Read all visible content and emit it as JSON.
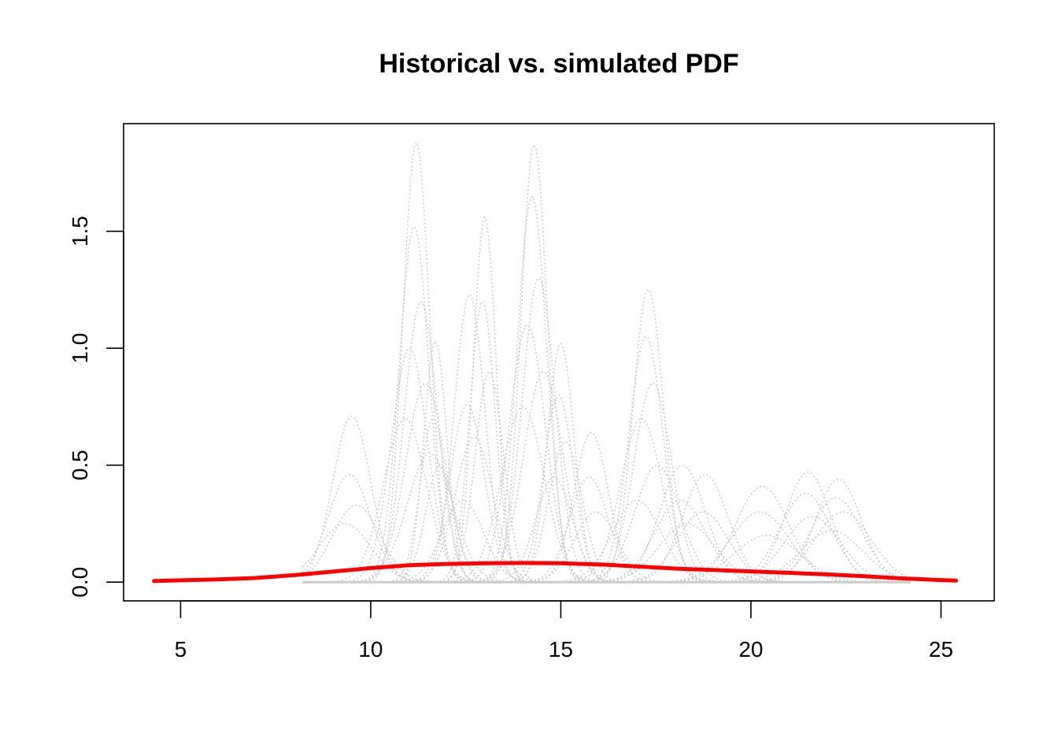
{
  "chart_data": {
    "type": "line",
    "title": "Historical vs. simulated PDF",
    "xlabel": "",
    "ylabel": "",
    "xlim": [
      3.5,
      26.4
    ],
    "ylim": [
      -0.08,
      1.96
    ],
    "x_ticks": [
      5,
      10,
      15,
      20,
      25
    ],
    "x_tick_labels": [
      "5",
      "10",
      "15",
      "20",
      "25"
    ],
    "y_ticks": [
      0.0,
      0.5,
      1.0,
      1.5
    ],
    "y_tick_labels": [
      "0.0",
      "0.5",
      "1.0",
      "1.5"
    ],
    "grid": false,
    "legend": "none",
    "colors": {
      "historical": "#ff0000",
      "simulated": "#cccccc",
      "axes": "#000000",
      "background": "#ffffff"
    },
    "simulated_peaks": [
      {
        "x": 9.5,
        "heights": [
          0.71,
          0.46,
          0.33,
          0.25
        ],
        "width": 0.5
      },
      {
        "x": 11.2,
        "heights": [
          1.88,
          1.52,
          1.2,
          1.0,
          0.85,
          0.7,
          0.55
        ],
        "width": 0.35
      },
      {
        "x": 11.7,
        "heights": [
          1.03,
          0.7,
          0.5
        ],
        "width": 0.3
      },
      {
        "x": 12.6,
        "heights": [
          1.23,
          0.76,
          0.62,
          0.35
        ],
        "width": 0.4
      },
      {
        "x": 13.0,
        "heights": [
          1.56,
          1.2,
          0.9
        ],
        "width": 0.3
      },
      {
        "x": 14.3,
        "heights": [
          1.87,
          1.65,
          1.3,
          1.1,
          0.9,
          0.75
        ],
        "width": 0.35
      },
      {
        "x": 15.0,
        "heights": [
          1.02,
          0.8,
          0.6,
          0.45
        ],
        "width": 0.35
      },
      {
        "x": 15.8,
        "heights": [
          0.64,
          0.45,
          0.3
        ],
        "width": 0.45
      },
      {
        "x": 17.3,
        "heights": [
          1.25,
          1.05,
          0.85,
          0.7,
          0.5,
          0.35
        ],
        "width": 0.4
      },
      {
        "x": 18.2,
        "heights": [
          0.5,
          0.35,
          0.25
        ],
        "width": 0.6
      },
      {
        "x": 18.8,
        "heights": [
          0.46,
          0.3
        ],
        "width": 0.6
      },
      {
        "x": 20.3,
        "heights": [
          0.41,
          0.3,
          0.2
        ],
        "width": 0.7
      },
      {
        "x": 21.5,
        "heights": [
          0.47,
          0.38,
          0.28
        ],
        "width": 0.6
      },
      {
        "x": 22.3,
        "heights": [
          0.44,
          0.36,
          0.3,
          0.22
        ],
        "width": 0.6
      }
    ],
    "series": [
      {
        "x": [
          4.3,
          5,
          6,
          7,
          8,
          9,
          10,
          11,
          12,
          13,
          14,
          15,
          16,
          17,
          18,
          19,
          20,
          21,
          22,
          23,
          24,
          25,
          25.4
        ],
        "values": [
          0.005,
          0.008,
          0.012,
          0.018,
          0.03,
          0.045,
          0.06,
          0.072,
          0.078,
          0.081,
          0.082,
          0.081,
          0.076,
          0.067,
          0.058,
          0.052,
          0.046,
          0.04,
          0.033,
          0.025,
          0.016,
          0.009,
          0.007
        ]
      }
    ]
  }
}
